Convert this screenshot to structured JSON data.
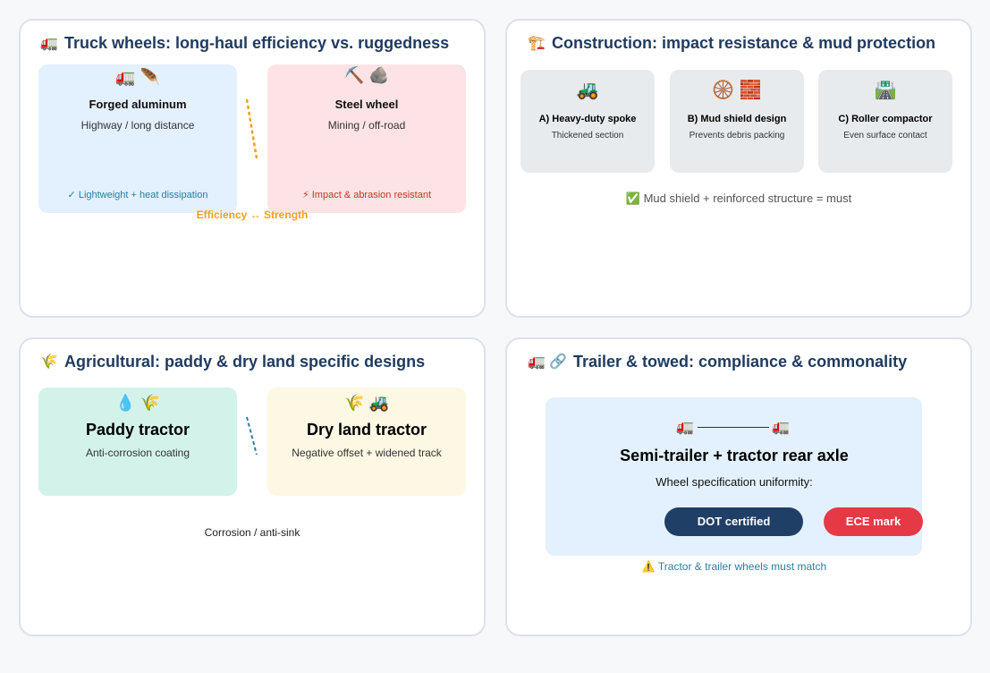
{
  "panels": [
    {
      "icon": "🚛",
      "title": "Truck wheels: long-haul efficiency vs. ruggedness",
      "boxes": [
        {
          "icons": "🚛 🪶",
          "heading": "Forged aluminum",
          "subtitle": "Highway / long distance",
          "note": "✓ Lightweight + heat dissipation"
        },
        {
          "icons": "⛏️ 🪨",
          "heading": "Steel wheel",
          "subtitle": "Mining / off-road",
          "note": "⚡ Impact & abrasion resistant"
        }
      ],
      "link_label": "Efficiency ↔ Strength"
    },
    {
      "icon": "🏗️",
      "title": "Construction: impact resistance & mud protection",
      "boxes": [
        {
          "icons": "🚜",
          "heading": "A) Heavy-duty spoke",
          "subtitle": "Thickened section"
        },
        {
          "icons": "🛞 🧱",
          "heading": "B) Mud shield design",
          "subtitle": "Prevents debris packing"
        },
        {
          "icons": "🛣️",
          "heading": "C) Roller compactor",
          "subtitle": "Even surface contact"
        }
      ],
      "note_icon": "✅",
      "note": "Mud shield + reinforced structure = must"
    },
    {
      "icon": "🌾",
      "title": "Agricultural: paddy & dry land specific designs",
      "boxes": [
        {
          "icons": "💧 🌾",
          "heading": "Paddy tractor",
          "subtitle": "Anti-corrosion coating"
        },
        {
          "icons": "🌾 🚜",
          "heading": "Dry land tractor",
          "subtitle": "Negative offset + widened track"
        }
      ],
      "note": "Corrosion / anti-sink"
    },
    {
      "icon": "🚛 🔗",
      "title": "Trailer & towed: compliance & commonality",
      "left_icon": "🚛",
      "right_icon": "🚛",
      "heading": "Semi-trailer + tractor rear axle",
      "subtitle": "Wheel specification uniformity:",
      "badges": [
        "DOT certified",
        "ECE mark"
      ],
      "note_icon": "⚠️",
      "note": "Tractor & trailer wheels must match"
    }
  ]
}
